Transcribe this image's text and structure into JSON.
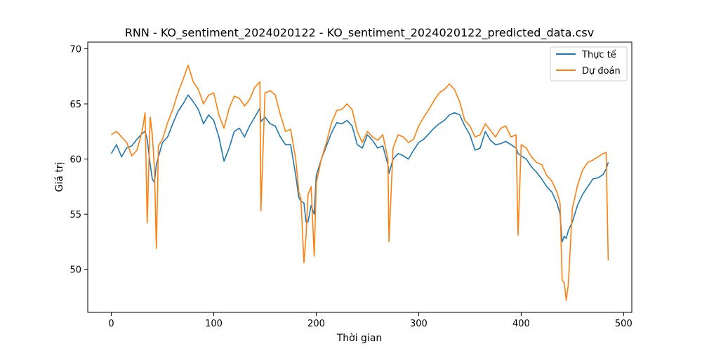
{
  "chart_data": {
    "type": "line",
    "title": "RNN - KO_sentiment_2024020122 - KO_sentiment_2024020122_predicted_data.csv",
    "xlabel": "Thời gian",
    "ylabel": "Giá trị",
    "xlim": [
      -23,
      508
    ],
    "ylim": [
      46.1,
      70.6
    ],
    "xticks": [
      0,
      100,
      200,
      300,
      400,
      500
    ],
    "yticks": [
      50,
      55,
      60,
      65,
      70
    ],
    "grid": false,
    "legend": "top-right",
    "x": [
      0,
      5,
      10,
      15,
      20,
      25,
      30,
      33,
      35,
      38,
      40,
      42,
      44,
      46,
      50,
      55,
      60,
      65,
      70,
      75,
      80,
      85,
      90,
      95,
      100,
      105,
      110,
      115,
      120,
      125,
      130,
      135,
      140,
      145,
      146,
      150,
      155,
      160,
      165,
      170,
      175,
      180,
      183,
      185,
      188,
      190,
      192,
      195,
      198,
      200,
      205,
      210,
      215,
      220,
      225,
      230,
      235,
      240,
      245,
      250,
      255,
      260,
      265,
      270,
      271,
      275,
      280,
      285,
      290,
      295,
      300,
      305,
      310,
      315,
      320,
      325,
      330,
      335,
      340,
      345,
      350,
      355,
      360,
      365,
      370,
      375,
      380,
      385,
      390,
      395,
      397,
      400,
      405,
      410,
      415,
      420,
      425,
      430,
      435,
      438,
      440,
      442,
      444,
      446,
      450,
      455,
      460,
      465,
      470,
      475,
      480,
      483,
      485
    ],
    "series": [
      {
        "name": "Thực tế",
        "color": "#1f77b4",
        "values": [
          60.5,
          61.3,
          60.2,
          61.0,
          61.2,
          61.8,
          62.3,
          62.5,
          61.8,
          59.5,
          58.2,
          57.9,
          59.5,
          60.2,
          61.5,
          62.0,
          63.2,
          64.3,
          65.0,
          65.8,
          65.2,
          64.5,
          63.2,
          64.0,
          63.5,
          62.0,
          59.8,
          61.0,
          62.5,
          62.8,
          62.0,
          63.0,
          63.8,
          64.6,
          63.4,
          63.8,
          63.2,
          63.0,
          62.0,
          61.3,
          61.3,
          58.5,
          56.5,
          56.2,
          56.0,
          54.3,
          54.3,
          55.8,
          55.0,
          58.5,
          60.0,
          61.2,
          62.4,
          63.3,
          63.2,
          63.5,
          63.0,
          61.3,
          61.0,
          62.2,
          61.7,
          61.0,
          61.2,
          59.5,
          58.7,
          60.0,
          60.5,
          60.3,
          60.0,
          60.8,
          61.5,
          61.8,
          62.3,
          62.8,
          63.2,
          63.5,
          64.0,
          64.2,
          64.0,
          63.0,
          62.2,
          60.8,
          61.0,
          62.5,
          61.7,
          61.3,
          61.4,
          61.6,
          61.3,
          61.0,
          60.5,
          60.3,
          60.0,
          59.3,
          58.8,
          58.2,
          57.5,
          57.0,
          56.0,
          55.0,
          52.5,
          53.0,
          52.8,
          53.5,
          54.3,
          55.8,
          56.8,
          57.5,
          58.2,
          58.3,
          58.6,
          59.1,
          59.7
        ]
      },
      {
        "name": "Dự đoán",
        "color": "#ff7f0e",
        "values": [
          62.2,
          62.5,
          62.0,
          61.5,
          60.3,
          60.8,
          62.5,
          64.2,
          54.2,
          63.8,
          62.2,
          59.3,
          51.9,
          61.2,
          61.8,
          63.3,
          64.5,
          66.0,
          67.2,
          68.5,
          67.0,
          66.3,
          65.0,
          65.8,
          66.0,
          64.0,
          62.8,
          64.6,
          65.7,
          65.5,
          64.8,
          65.4,
          66.5,
          67.0,
          55.3,
          66.0,
          66.2,
          65.8,
          64.0,
          62.5,
          62.7,
          60.0,
          57.0,
          56.4,
          50.6,
          53.0,
          56.8,
          57.5,
          51.2,
          57.8,
          60.0,
          61.5,
          63.3,
          64.4,
          64.5,
          65.0,
          64.5,
          62.5,
          61.5,
          62.5,
          62.0,
          61.7,
          62.2,
          60.0,
          52.5,
          61.0,
          62.2,
          62.0,
          61.5,
          61.8,
          63.0,
          63.8,
          64.5,
          65.3,
          66.0,
          66.3,
          66.8,
          66.3,
          65.2,
          63.5,
          63.0,
          62.0,
          62.2,
          63.2,
          62.6,
          62.0,
          62.8,
          63.0,
          62.0,
          62.2,
          53.1,
          61.3,
          61.0,
          60.2,
          59.7,
          59.5,
          58.5,
          58.0,
          57.0,
          56.0,
          49.0,
          48.8,
          47.2,
          48.6,
          55.5,
          57.6,
          59.0,
          59.7,
          59.9,
          60.2,
          60.5,
          60.6,
          50.8
        ]
      }
    ]
  }
}
